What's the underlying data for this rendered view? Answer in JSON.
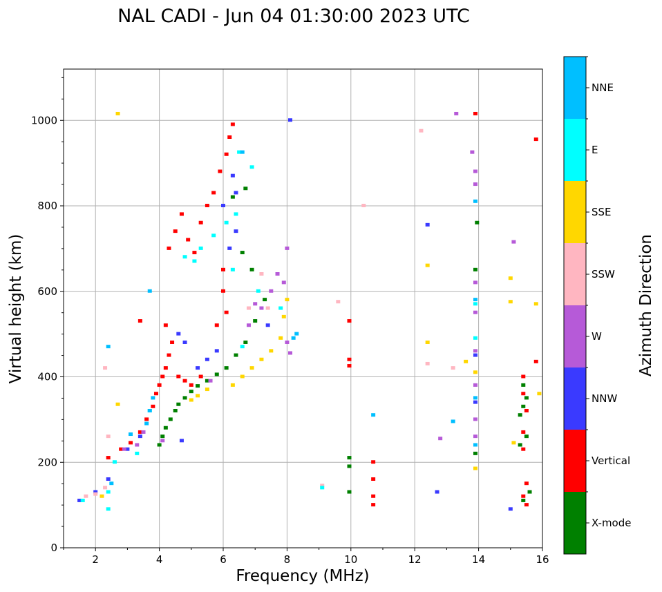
{
  "chart_data": {
    "type": "scatter",
    "title": "NAL CADI - Jun 04 01:30:00 2023 UTC",
    "xlabel": "Frequency (MHz)",
    "ylabel": "Virtual height (km)",
    "xlim": [
      1,
      16
    ],
    "ylim": [
      0,
      1120
    ],
    "xticks": [
      2,
      4,
      6,
      8,
      10,
      12,
      14,
      16
    ],
    "yticks": [
      0,
      200,
      400,
      600,
      800,
      1000
    ],
    "grid": true,
    "colorbar": {
      "label": "Azimuth Direction",
      "placement": "right",
      "categories": [
        {
          "name": "X-mode",
          "color": "#008000"
        },
        {
          "name": "Vertical",
          "color": "#ff0000"
        },
        {
          "name": "NNW",
          "color": "#3a3aff"
        },
        {
          "name": "W",
          "color": "#b65ad8"
        },
        {
          "name": "SSW",
          "color": "#ffb6c1"
        },
        {
          "name": "SSE",
          "color": "#ffd700"
        },
        {
          "name": "E",
          "color": "#00ffff"
        },
        {
          "name": "NNE",
          "color": "#00bfff"
        }
      ]
    },
    "series": [
      {
        "name": "X-mode",
        "points": [
          [
            4.0,
            240
          ],
          [
            4.1,
            260
          ],
          [
            4.2,
            280
          ],
          [
            4.35,
            300
          ],
          [
            4.5,
            320
          ],
          [
            4.6,
            335
          ],
          [
            4.8,
            350
          ],
          [
            5.0,
            365
          ],
          [
            5.2,
            378
          ],
          [
            5.5,
            390
          ],
          [
            5.8,
            405
          ],
          [
            6.1,
            420
          ],
          [
            6.4,
            450
          ],
          [
            6.7,
            480
          ],
          [
            7.0,
            530
          ],
          [
            7.3,
            580
          ],
          [
            6.6,
            690
          ],
          [
            6.9,
            650
          ],
          [
            6.3,
            820
          ],
          [
            6.7,
            840
          ],
          [
            15.3,
            310
          ],
          [
            15.4,
            330
          ],
          [
            15.5,
            350
          ],
          [
            15.4,
            380
          ],
          [
            15.3,
            240
          ],
          [
            15.5,
            260
          ],
          [
            15.4,
            110
          ],
          [
            15.6,
            130
          ],
          [
            13.9,
            650
          ],
          [
            13.95,
            760
          ],
          [
            13.9,
            220
          ],
          [
            9.95,
            210
          ],
          [
            9.95,
            190
          ],
          [
            9.95,
            130
          ]
        ]
      },
      {
        "name": "Vertical",
        "points": [
          [
            2.4,
            210
          ],
          [
            2.8,
            230
          ],
          [
            3.1,
            245
          ],
          [
            3.4,
            270
          ],
          [
            3.6,
            300
          ],
          [
            3.8,
            330
          ],
          [
            3.9,
            360
          ],
          [
            4.0,
            380
          ],
          [
            4.1,
            400
          ],
          [
            4.2,
            420
          ],
          [
            4.3,
            450
          ],
          [
            4.4,
            480
          ],
          [
            4.6,
            400
          ],
          [
            4.8,
            390
          ],
          [
            5.0,
            380
          ],
          [
            5.3,
            400
          ],
          [
            4.3,
            700
          ],
          [
            4.5,
            740
          ],
          [
            4.7,
            780
          ],
          [
            4.9,
            720
          ],
          [
            5.1,
            690
          ],
          [
            5.3,
            760
          ],
          [
            5.5,
            800
          ],
          [
            5.7,
            830
          ],
          [
            5.9,
            880
          ],
          [
            6.1,
            920
          ],
          [
            6.2,
            960
          ],
          [
            6.3,
            990
          ],
          [
            6.0,
            600
          ],
          [
            6.0,
            650
          ],
          [
            6.1,
            550
          ],
          [
            5.8,
            520
          ],
          [
            3.4,
            530
          ],
          [
            4.2,
            520
          ],
          [
            10.7,
            200
          ],
          [
            10.7,
            160
          ],
          [
            10.7,
            120
          ],
          [
            10.7,
            100
          ],
          [
            15.4,
            400
          ],
          [
            15.4,
            360
          ],
          [
            15.5,
            320
          ],
          [
            15.4,
            270
          ],
          [
            15.4,
            230
          ],
          [
            15.5,
            150
          ],
          [
            15.4,
            120
          ],
          [
            15.5,
            100
          ],
          [
            9.95,
            530
          ],
          [
            9.95,
            440
          ],
          [
            9.95,
            425
          ],
          [
            13.9,
            1015
          ],
          [
            15.8,
            955
          ],
          [
            15.8,
            435
          ]
        ]
      },
      {
        "name": "NNW",
        "points": [
          [
            1.5,
            110
          ],
          [
            2.0,
            130
          ],
          [
            2.4,
            160
          ],
          [
            3.0,
            230
          ],
          [
            3.4,
            260
          ],
          [
            4.6,
            500
          ],
          [
            4.8,
            480
          ],
          [
            5.2,
            420
          ],
          [
            5.5,
            440
          ],
          [
            5.8,
            460
          ],
          [
            6.2,
            700
          ],
          [
            6.4,
            740
          ],
          [
            6.0,
            800
          ],
          [
            6.3,
            870
          ],
          [
            6.4,
            830
          ],
          [
            7.4,
            520
          ],
          [
            8.1,
            1000
          ],
          [
            12.4,
            755
          ],
          [
            12.7,
            130
          ],
          [
            15.0,
            90
          ],
          [
            13.9,
            450
          ],
          [
            13.9,
            340
          ],
          [
            4.7,
            250
          ]
        ]
      },
      {
        "name": "W",
        "points": [
          [
            2.9,
            230
          ],
          [
            3.3,
            240
          ],
          [
            3.5,
            270
          ],
          [
            5.6,
            390
          ],
          [
            6.8,
            520
          ],
          [
            7.0,
            570
          ],
          [
            7.2,
            560
          ],
          [
            7.5,
            600
          ],
          [
            7.7,
            640
          ],
          [
            7.9,
            620
          ],
          [
            8.0,
            480
          ],
          [
            8.0,
            700
          ],
          [
            8.1,
            455
          ],
          [
            13.3,
            1015
          ],
          [
            13.8,
            925
          ],
          [
            13.9,
            880
          ],
          [
            13.9,
            850
          ],
          [
            13.9,
            620
          ],
          [
            13.9,
            550
          ],
          [
            13.9,
            460
          ],
          [
            13.9,
            380
          ],
          [
            13.9,
            260
          ],
          [
            13.9,
            300
          ],
          [
            12.8,
            255
          ],
          [
            15.1,
            715
          ],
          [
            4.1,
            250
          ]
        ]
      },
      {
        "name": "SSW",
        "points": [
          [
            1.7,
            120
          ],
          [
            2.0,
            125
          ],
          [
            2.3,
            140
          ],
          [
            2.3,
            420
          ],
          [
            6.8,
            560
          ],
          [
            7.2,
            640
          ],
          [
            7.4,
            560
          ],
          [
            9.1,
            145
          ],
          [
            9.6,
            575
          ],
          [
            10.4,
            800
          ],
          [
            12.2,
            975
          ],
          [
            12.4,
            430
          ],
          [
            13.2,
            420
          ],
          [
            2.4,
            260
          ]
        ]
      },
      {
        "name": "SSE",
        "points": [
          [
            2.2,
            120
          ],
          [
            2.7,
            335
          ],
          [
            5.0,
            345
          ],
          [
            5.2,
            355
          ],
          [
            5.5,
            370
          ],
          [
            6.3,
            380
          ],
          [
            6.6,
            400
          ],
          [
            6.9,
            420
          ],
          [
            7.2,
            440
          ],
          [
            7.5,
            460
          ],
          [
            7.8,
            490
          ],
          [
            7.9,
            540
          ],
          [
            8.0,
            580
          ],
          [
            12.4,
            480
          ],
          [
            12.4,
            660
          ],
          [
            15.0,
            630
          ],
          [
            15.0,
            575
          ],
          [
            15.1,
            245
          ],
          [
            15.8,
            570
          ],
          [
            15.9,
            360
          ],
          [
            13.6,
            435
          ],
          [
            13.9,
            410
          ],
          [
            13.9,
            185
          ],
          [
            2.7,
            1015
          ]
        ]
      },
      {
        "name": "E",
        "points": [
          [
            1.6,
            110
          ],
          [
            2.4,
            90
          ],
          [
            2.4,
            130
          ],
          [
            2.6,
            200
          ],
          [
            3.3,
            220
          ],
          [
            4.8,
            680
          ],
          [
            5.1,
            670
          ],
          [
            5.3,
            700
          ],
          [
            5.7,
            730
          ],
          [
            6.1,
            760
          ],
          [
            6.4,
            780
          ],
          [
            6.5,
            925
          ],
          [
            6.9,
            890
          ],
          [
            6.6,
            470
          ],
          [
            6.3,
            650
          ],
          [
            7.1,
            600
          ],
          [
            7.8,
            560
          ],
          [
            3.7,
            320
          ],
          [
            9.1,
            140
          ],
          [
            13.9,
            570
          ],
          [
            13.9,
            490
          ]
        ]
      },
      {
        "name": "NNE",
        "points": [
          [
            2.5,
            150
          ],
          [
            3.1,
            265
          ],
          [
            3.6,
            290
          ],
          [
            3.7,
            320
          ],
          [
            3.8,
            350
          ],
          [
            6.6,
            925
          ],
          [
            8.2,
            490
          ],
          [
            8.3,
            500
          ],
          [
            13.2,
            295
          ],
          [
            13.9,
            810
          ],
          [
            13.9,
            580
          ],
          [
            13.9,
            350
          ],
          [
            13.9,
            240
          ],
          [
            3.7,
            600
          ],
          [
            2.4,
            470
          ],
          [
            10.7,
            310
          ]
        ]
      }
    ]
  }
}
